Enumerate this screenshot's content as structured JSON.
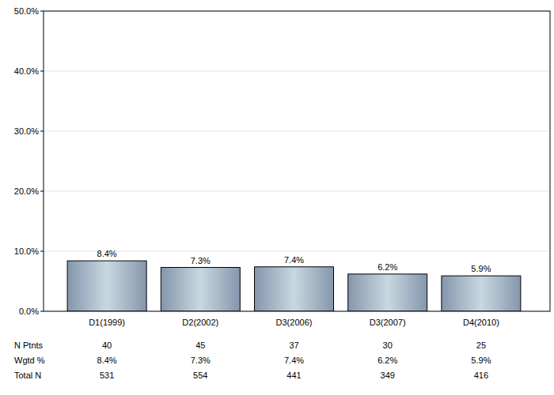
{
  "chart_data": {
    "type": "bar",
    "categories": [
      "D1(1999)",
      "D2(2002)",
      "D3(2006)",
      "D3(2007)",
      "D4(2010)"
    ],
    "values": [
      8.4,
      7.3,
      7.4,
      6.2,
      5.9
    ],
    "value_labels": [
      "8.4%",
      "7.3%",
      "7.4%",
      "6.2%",
      "5.9%"
    ],
    "data_labels": true,
    "color": "#c8d8e0",
    "ylim": [
      0,
      50
    ],
    "yticks": [
      {
        "value": 0,
        "label": "0.0%"
      },
      {
        "value": 10,
        "label": "10.0%"
      },
      {
        "value": 20,
        "label": "20.0%"
      },
      {
        "value": 30,
        "label": "30.0%"
      },
      {
        "value": 40,
        "label": "40.0%"
      },
      {
        "value": 50,
        "label": "50.0%"
      }
    ],
    "grid": true,
    "table": {
      "rows": [
        {
          "label": "N Ptnts",
          "values": [
            40,
            45,
            37,
            30,
            25
          ]
        },
        {
          "label": "Wgtd %",
          "values": [
            8.4,
            7.3,
            7.4,
            6.2,
            5.9
          ],
          "value_labels": [
            "8.4%",
            "7.3%",
            "7.4%",
            "6.2%",
            "5.9%"
          ]
        },
        {
          "label": "Total N",
          "values": [
            531,
            554,
            441,
            349,
            416
          ]
        }
      ]
    }
  }
}
